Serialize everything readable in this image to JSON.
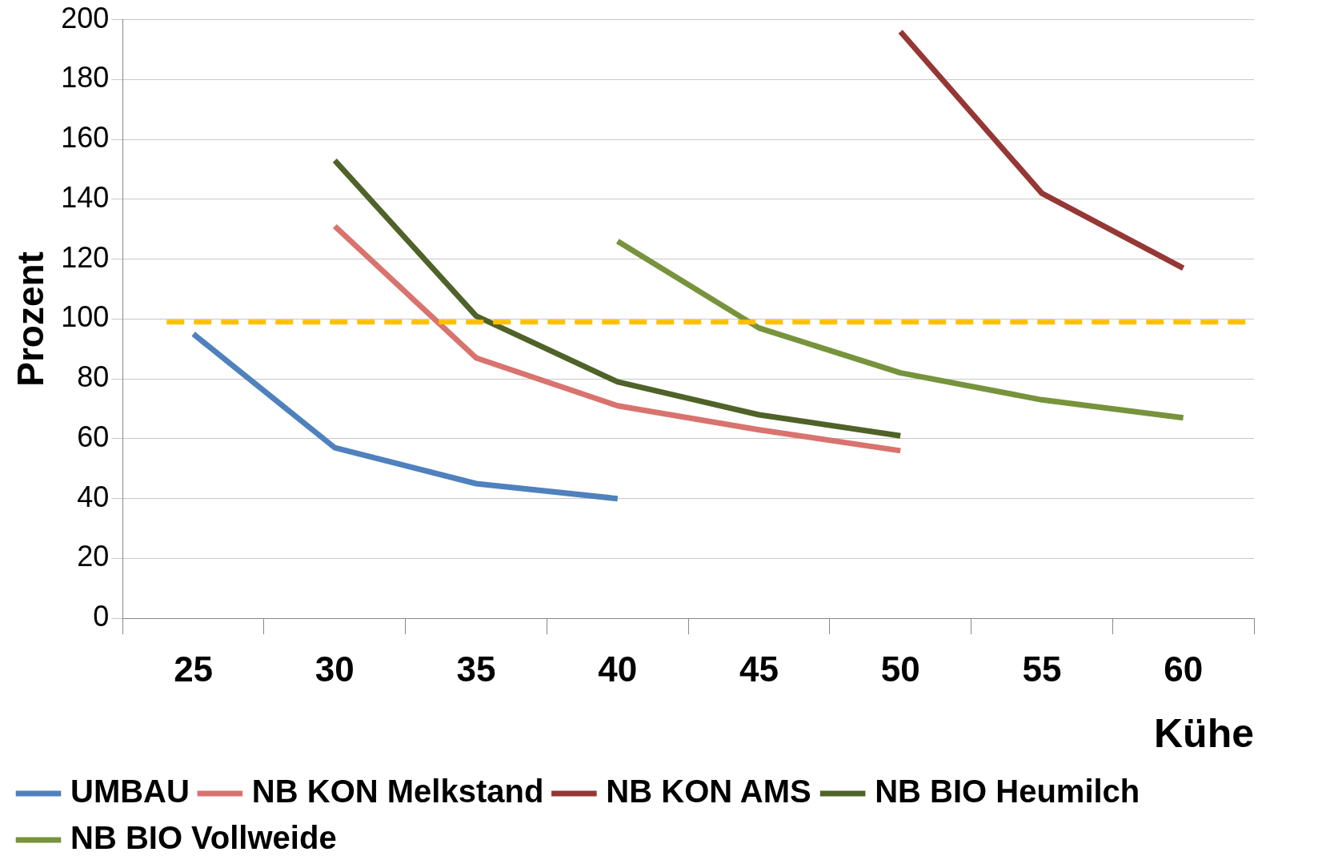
{
  "chart_data": {
    "type": "line",
    "xlabel": "Kühe",
    "ylabel": "Prozent",
    "categories": [
      "25",
      "30",
      "35",
      "40",
      "45",
      "50",
      "55",
      "60"
    ],
    "series": [
      {
        "name": "UMBAU",
        "color": "#4f81bd",
        "values": [
          95,
          57,
          45,
          40,
          null,
          null,
          null,
          null
        ]
      },
      {
        "name": "NB KON Melkstand",
        "color": "#d9736e",
        "values": [
          null,
          131,
          87,
          71,
          63,
          56,
          null,
          null
        ]
      },
      {
        "name": "NB KON AMS",
        "color": "#953735",
        "values": [
          null,
          null,
          null,
          null,
          null,
          196,
          142,
          117
        ]
      },
      {
        "name": "NB BIO Heumilch",
        "color": "#4f6228",
        "values": [
          null,
          153,
          101,
          79,
          68,
          61,
          null,
          null
        ]
      },
      {
        "name": "NB BIO Vollweide",
        "color": "#77933c",
        "values": [
          null,
          null,
          null,
          126,
          97,
          82,
          73,
          67
        ]
      }
    ],
    "ref_lines": [
      {
        "axis": "y",
        "value": 99,
        "color": "#ffc000",
        "line_style": "dashed"
      }
    ],
    "ylim": [
      0,
      200
    ],
    "yticks": [
      0,
      20,
      40,
      60,
      80,
      100,
      120,
      140,
      160,
      180,
      200
    ],
    "grid": "y",
    "legend": "bottom",
    "marker": "none",
    "line_style": "solid"
  }
}
